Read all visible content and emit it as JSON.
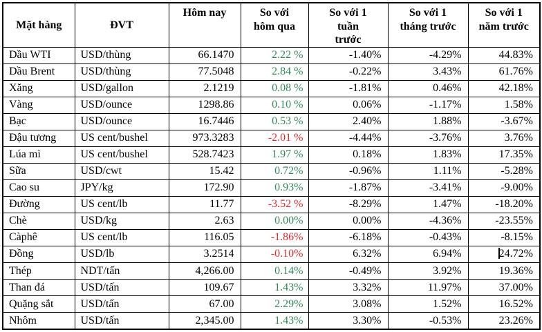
{
  "colors": {
    "positive": "#2E8B57",
    "negative": "#E02B2B",
    "text": "#000000",
    "border": "#000000",
    "background": "#FFFFFF"
  },
  "caret": {
    "row_name": "Đồng",
    "column": "vs_year"
  },
  "table": {
    "headers": [
      {
        "id": "commodity",
        "label": "Mặt hàng"
      },
      {
        "id": "unit",
        "label": "ĐVT"
      },
      {
        "id": "today",
        "label": "Hôm nay"
      },
      {
        "id": "vs_yesterday",
        "label": "So với\nhôm qua"
      },
      {
        "id": "vs_week",
        "label": "So với 1\ntuần\ntrước"
      },
      {
        "id": "vs_month",
        "label": "So với 1\ntháng trước"
      },
      {
        "id": "vs_year",
        "label": "So với 1\nnăm trước"
      }
    ],
    "rows": [
      {
        "commodity": "Dầu WTI",
        "unit": "USD/thùng",
        "today": "66.1470",
        "vs_yesterday": {
          "text": "2.22 %",
          "trend": "up"
        },
        "vs_week": "-1.40%",
        "vs_month": "-4.29%",
        "vs_year": "44.83%"
      },
      {
        "commodity": "Dầu Brent",
        "unit": "USD/thùng",
        "today": "77.5048",
        "vs_yesterday": {
          "text": "2.84 %",
          "trend": "up"
        },
        "vs_week": "-0.22%",
        "vs_month": "3.43%",
        "vs_year": "61.76%"
      },
      {
        "commodity": "Xăng",
        "unit": "USD/gallon",
        "today": "2.1219",
        "vs_yesterday": {
          "text": "0.08 %",
          "trend": "up"
        },
        "vs_week": "-1.81%",
        "vs_month": "0.46%",
        "vs_year": "42.18%"
      },
      {
        "commodity": "Vàng",
        "unit": "USD/ounce",
        "today": "1298.86",
        "vs_yesterday": {
          "text": "0.10 %",
          "trend": "up"
        },
        "vs_week": "0.06%",
        "vs_month": "-1.17%",
        "vs_year": "1.58%"
      },
      {
        "commodity": "Bạc",
        "unit": "USD/ounce",
        "today": "16.7446",
        "vs_yesterday": {
          "text": "0.53 %",
          "trend": "up"
        },
        "vs_week": "2.40%",
        "vs_month": "1.88%",
        "vs_year": "-3.67%"
      },
      {
        "commodity": "Đậu tương",
        "unit": "US cent/bushel",
        "today": "973.3283",
        "vs_yesterday": {
          "text": "-2.01 %",
          "trend": "down"
        },
        "vs_week": "-4.44%",
        "vs_month": "-3.76%",
        "vs_year": "3.76%"
      },
      {
        "commodity": "Lúa mì",
        "unit": "US cent/bushel",
        "today": "528.7423",
        "vs_yesterday": {
          "text": "1.97 %",
          "trend": "up"
        },
        "vs_week": "0.18%",
        "vs_month": "1.83%",
        "vs_year": "17.35%"
      },
      {
        "commodity": "Sữa",
        "unit": "USD/cwt",
        "today": "15.42",
        "vs_yesterday": {
          "text": "0.72%",
          "trend": "up"
        },
        "vs_week": "-0.96%",
        "vs_month": "1.11%",
        "vs_year": "-5.28%"
      },
      {
        "commodity": "Cao su",
        "unit": "JPY/kg",
        "today": "172.90",
        "vs_yesterday": {
          "text": "0.93%",
          "trend": "up"
        },
        "vs_week": "-1.87%",
        "vs_month": "-3.41%",
        "vs_year": "-9.00%"
      },
      {
        "commodity": "Đường",
        "unit": "US cent/lb",
        "today": "11.77",
        "vs_yesterday": {
          "text": "-3.52 %",
          "trend": "down"
        },
        "vs_week": "-8.29%",
        "vs_month": "1.47%",
        "vs_year": "-18.20%"
      },
      {
        "commodity": "Chè",
        "unit": "USD/kg",
        "today": "2.63",
        "vs_yesterday": {
          "text": "0.00%",
          "trend": "up"
        },
        "vs_week": "0.00%",
        "vs_month": "-4.36%",
        "vs_year": "-23.55%"
      },
      {
        "commodity": "Càphê",
        "unit": "US cent/lb",
        "today": "116.05",
        "vs_yesterday": {
          "text": "-1.86%",
          "trend": "down"
        },
        "vs_week": "-6.18%",
        "vs_month": "-0.43%",
        "vs_year": "-8.15%"
      },
      {
        "commodity": "Đồng",
        "unit": "USD/lb",
        "today": "3.2514",
        "vs_yesterday": {
          "text": "-0.10%",
          "trend": "down"
        },
        "vs_week": "6.32%",
        "vs_month": "6.94%",
        "vs_year": "24.72%"
      },
      {
        "commodity": "Thép",
        "unit": "NDT/tấn",
        "today": "4,266.00",
        "vs_yesterday": {
          "text": "0.14%",
          "trend": "up"
        },
        "vs_week": "-0.49%",
        "vs_month": "3.92%",
        "vs_year": "19.36%"
      },
      {
        "commodity": "Than đá",
        "unit": "USD/tấn",
        "today": "109.67",
        "vs_yesterday": {
          "text": "1.43%",
          "trend": "up"
        },
        "vs_week": "3.32%",
        "vs_month": "11.97%",
        "vs_year": "37.00%"
      },
      {
        "commodity": "Quặng sắt",
        "unit": "USD/tấn",
        "today": "67.00",
        "vs_yesterday": {
          "text": "2.29%",
          "trend": "up"
        },
        "vs_week": "3.08%",
        "vs_month": "1.52%",
        "vs_year": "16.52%"
      },
      {
        "commodity": "Nhôm",
        "unit": "USD/tấn",
        "today": "2,345.00",
        "vs_yesterday": {
          "text": "1.43%",
          "trend": "up"
        },
        "vs_week": "3.30%",
        "vs_month": "-0.53%",
        "vs_year": "23.26%"
      }
    ]
  }
}
